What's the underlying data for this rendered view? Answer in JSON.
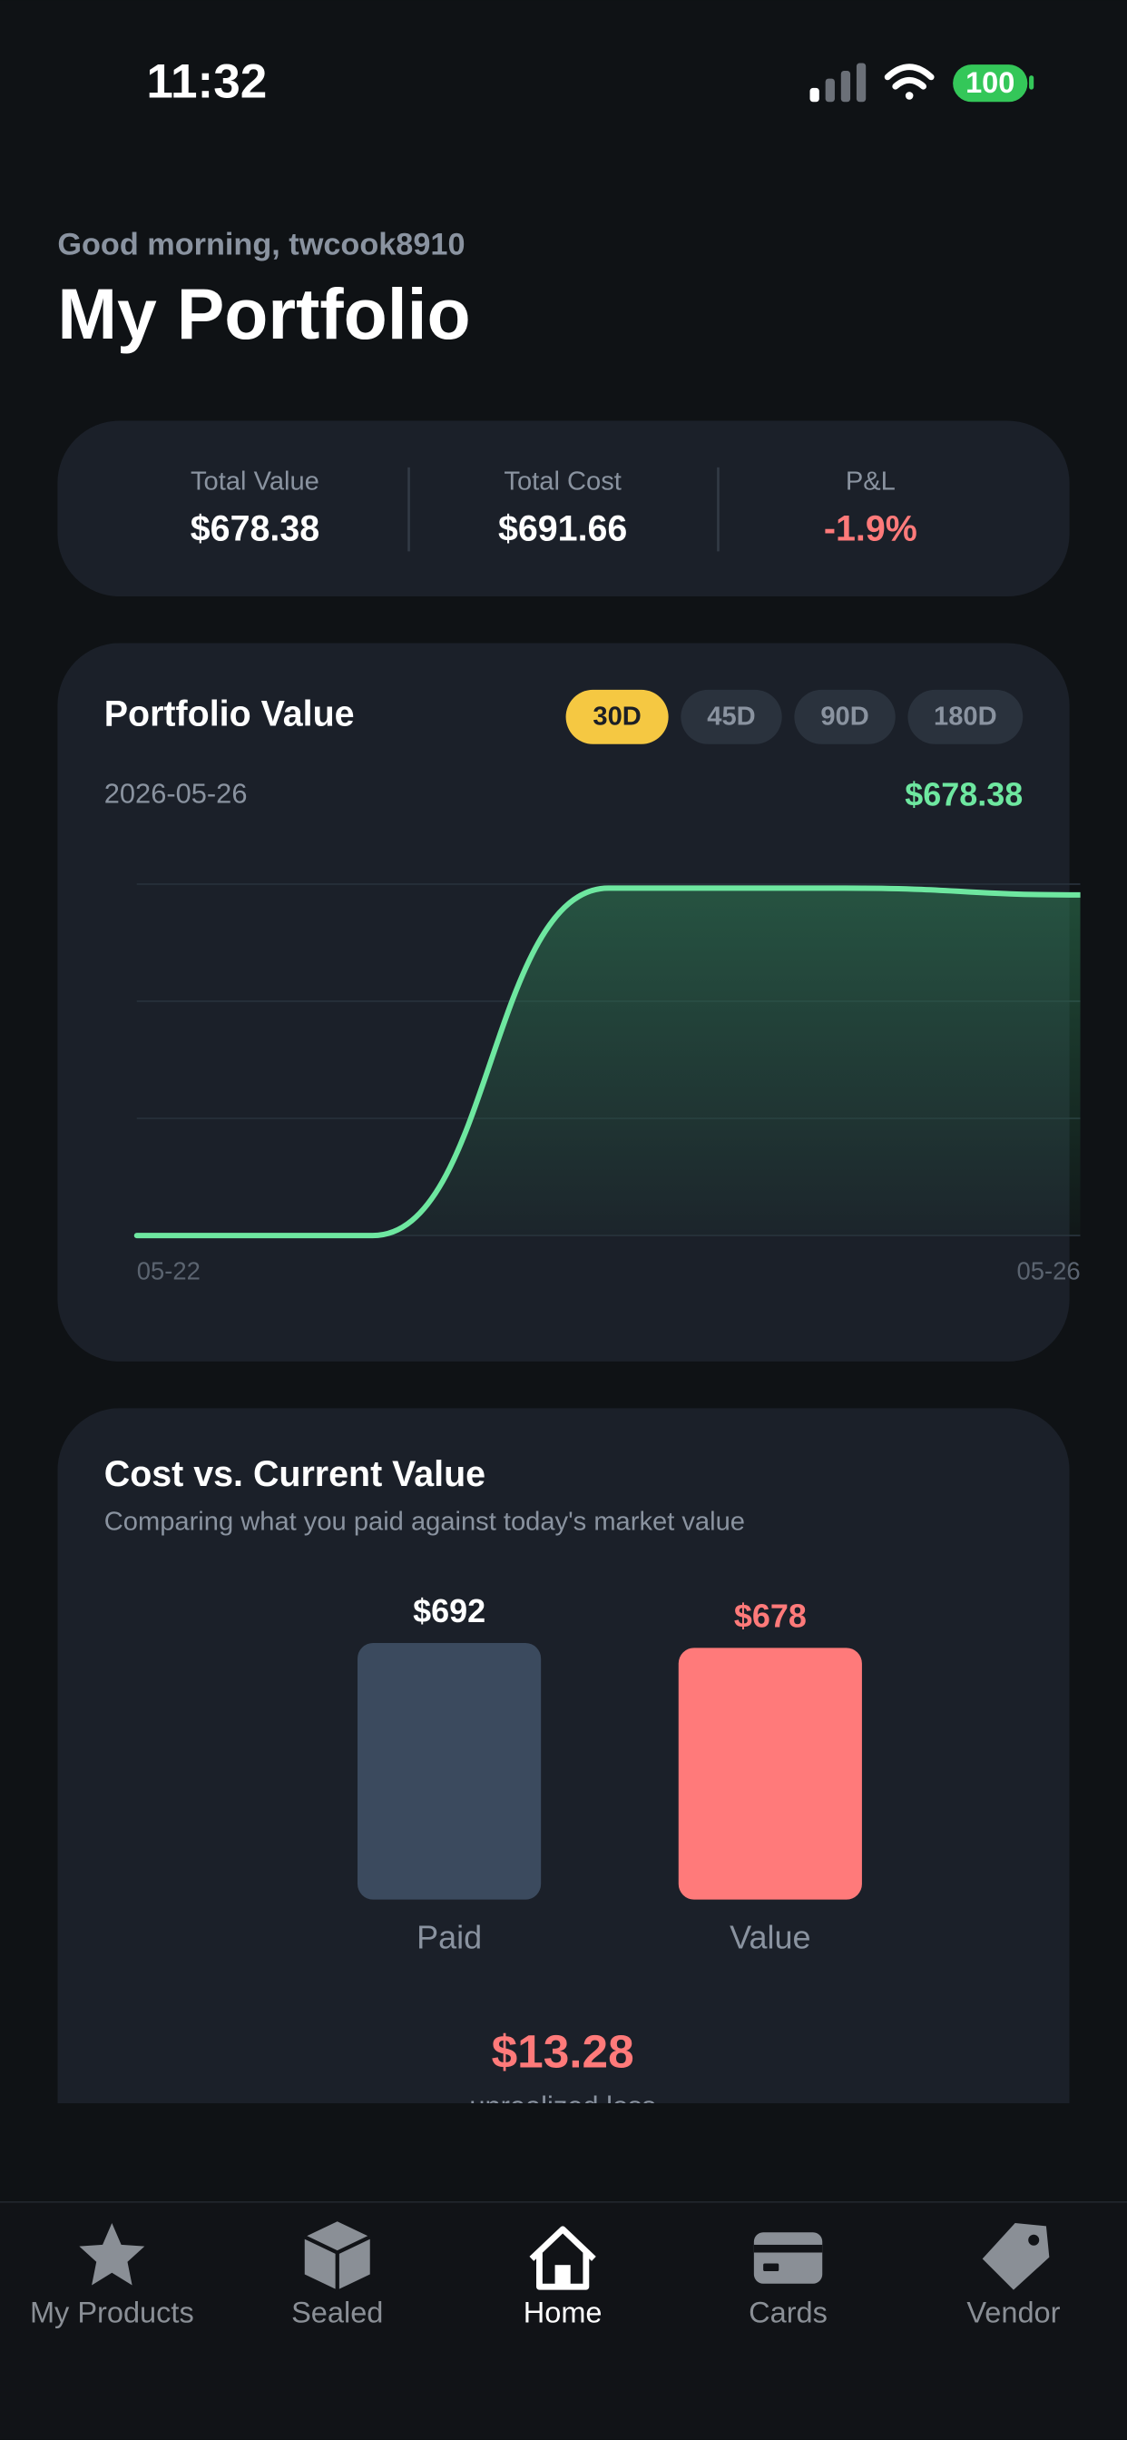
{
  "status_bar": {
    "time": "11:32",
    "battery": "100"
  },
  "header": {
    "greeting": "Good morning, twcook8910",
    "title": "My Portfolio"
  },
  "summary": [
    {
      "label": "Total Value",
      "value": "$678.38"
    },
    {
      "label": "Total Cost",
      "value": "$691.66"
    },
    {
      "label": "P&L",
      "value": "-1.9%"
    }
  ],
  "portfolio_card": {
    "ranges": [
      "30D",
      "45D",
      "90D",
      "180D"
    ],
    "selected_range": 0,
    "date": "2026-05-26",
    "current_value": "$678.38"
  },
  "chart_data": [
    {
      "type": "line",
      "title": "Portfolio Value",
      "categories": [
        "05-22",
        null,
        null,
        null,
        "05-26"
      ],
      "values": [
        0,
        0,
        692,
        692,
        678.38
      ],
      "color": "#6ee7a0",
      "ylim": [
        0,
        700
      ],
      "grid": true,
      "area": true
    },
    {
      "type": "bar",
      "title": "Cost vs. Current Value",
      "subtitle": "Comparing what you paid against today's market value",
      "categories": [
        "Paid",
        "Value"
      ],
      "values": [
        691.66,
        678.38
      ],
      "value_labels": [
        "$692",
        "$678"
      ],
      "colors": [
        "#3b4a5e",
        "#ff7a7a"
      ],
      "value_label_colors": [
        "#ffffff",
        "#ff7a7a"
      ],
      "ylim": [
        0,
        700
      ]
    }
  ],
  "loss_summary": {
    "amount": "$13.28",
    "caption": "unrealized loss"
  },
  "nav": {
    "tabs": [
      "My Products",
      "Sealed",
      "Home",
      "Cards",
      "Vendor"
    ],
    "active_tab": 2
  }
}
